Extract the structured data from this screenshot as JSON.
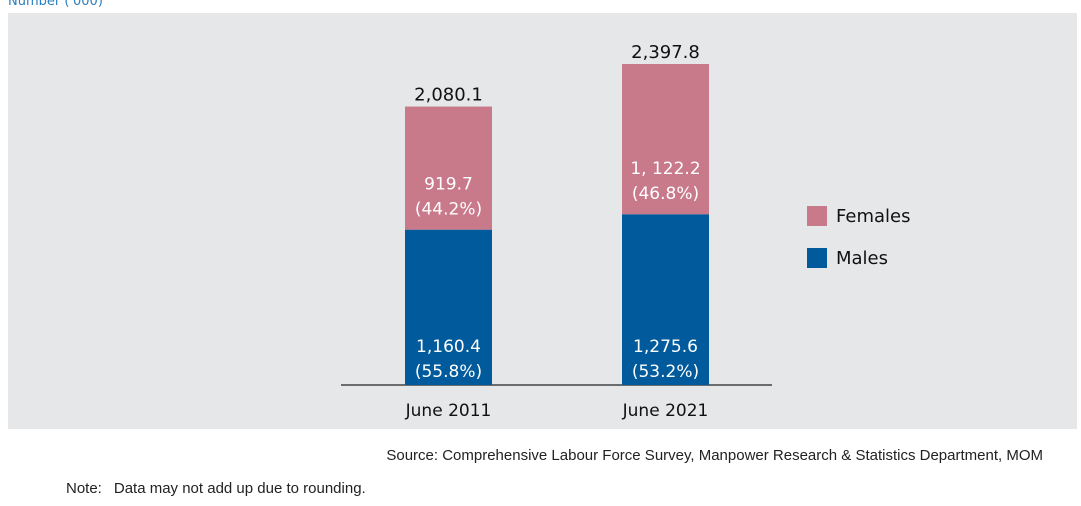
{
  "unit_label": "Number ('000)",
  "source": "Source: Comprehensive Labour Force Survey, Manpower Research & Statistics Department, MOM",
  "note": {
    "prefix": "Note:",
    "text": "Data may not add up due to rounding."
  },
  "colors": {
    "males": "#005a9c",
    "females": "#c97a8a",
    "panel": "#e6e7e8"
  },
  "legend": [
    {
      "label": "Females",
      "color": "#c97a8a"
    },
    {
      "label": "Males",
      "color": "#005a9c"
    }
  ],
  "chart_data": {
    "type": "bar",
    "stacked": true,
    "categories": [
      "June 2011",
      "June 2021"
    ],
    "series": [
      {
        "name": "Males",
        "values": [
          1160.4,
          1275.6
        ],
        "labels": [
          "1,160.4",
          "1,275.6"
        ],
        "shares": [
          "(55.8%)",
          "(53.2%)"
        ]
      },
      {
        "name": "Females",
        "values": [
          919.7,
          1122.2
        ],
        "labels": [
          "919.7",
          "1, 122.2"
        ],
        "shares": [
          "(44.2%)",
          "(46.8%)"
        ]
      }
    ],
    "totals": [
      2080.1,
      2397.8
    ],
    "total_labels": [
      "2,080.1",
      "2,397.8"
    ],
    "ylabel": "Number ('000)",
    "legend_position": "right",
    "grid": false
  }
}
